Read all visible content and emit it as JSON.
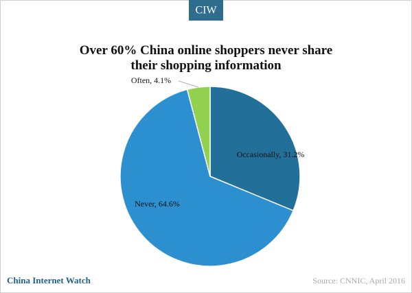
{
  "header": {
    "badge": "CIW"
  },
  "chart_data": {
    "type": "pie",
    "title": "Over 60% China online shoppers never share their shopping information",
    "values": [
      31.2,
      64.6,
      4.1
    ],
    "value_labels": [
      "Occasionally, 31.2%",
      "Never, 64.6%",
      "Often, 4.1%"
    ],
    "colors": [
      "#22709a",
      "#2b8fd0",
      "#92d050"
    ]
  },
  "footer": {
    "brand": "China Internet Watch",
    "source": "Source: CNNIC, April 2016"
  }
}
